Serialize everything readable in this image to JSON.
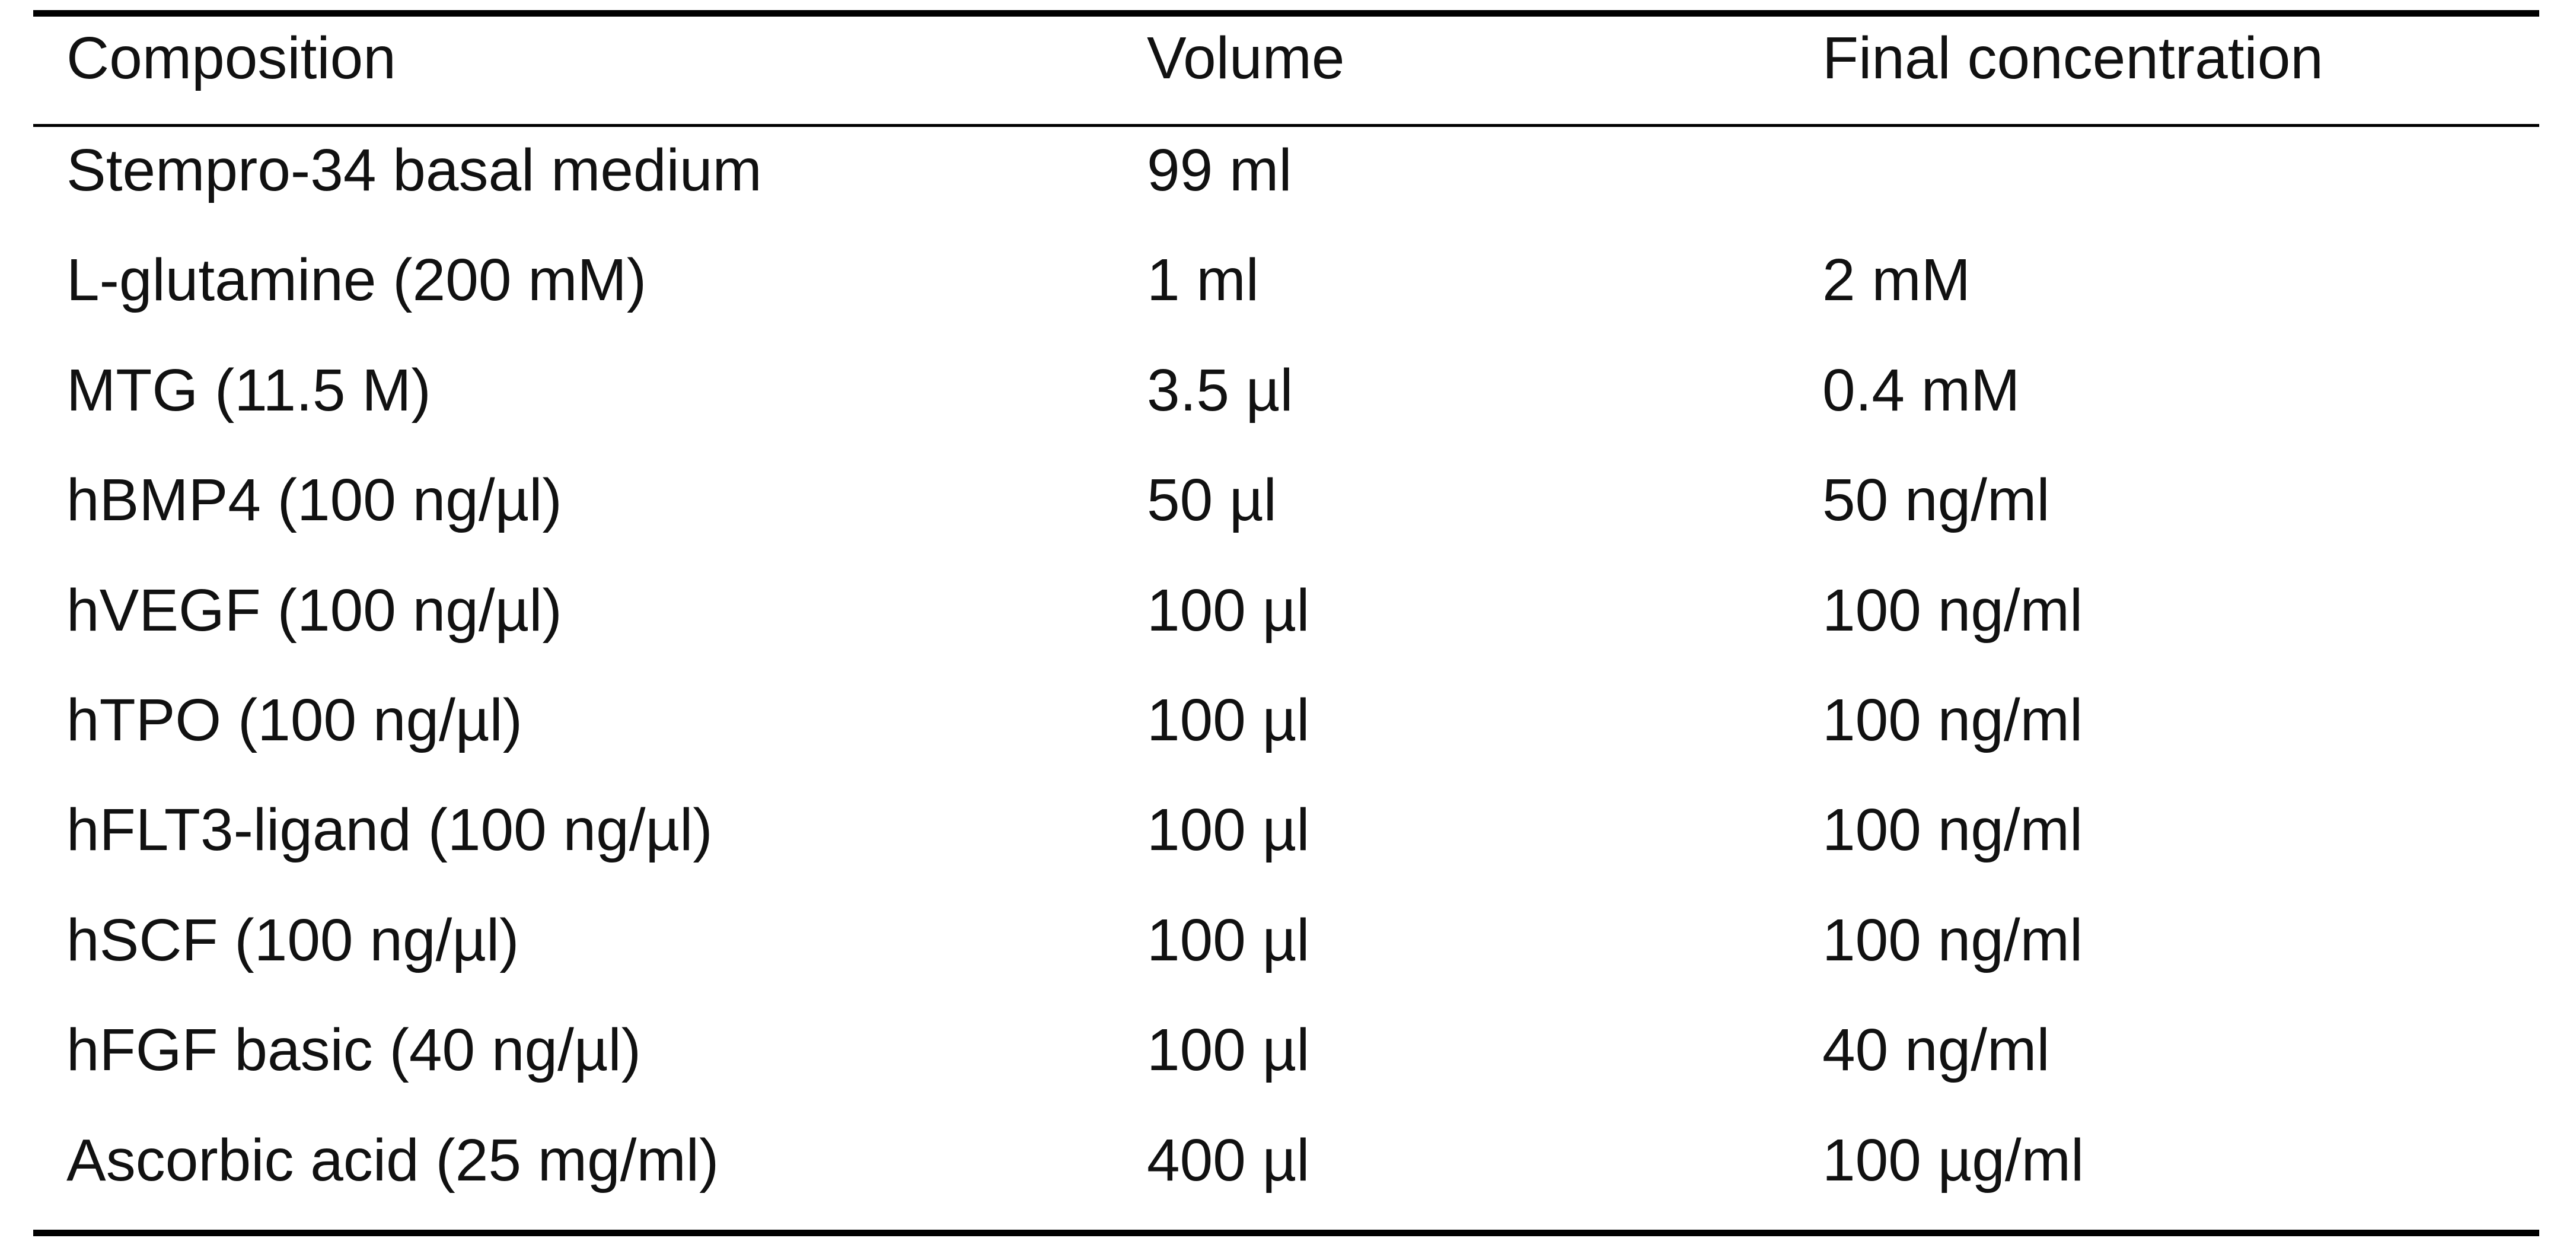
{
  "table": {
    "header": [
      "Composition",
      "Volume",
      "Final concentration"
    ],
    "rows": [
      [
        "Stempro-34 basal medium",
        "99 ml"
      ],
      [
        "L-glutamine (200 mM)",
        "1 ml",
        "2 mM"
      ],
      [
        "MTG (11.5 M)",
        "3.5 µl",
        "0.4 mM"
      ],
      [
        "hBMP4 (100 ng/µl)",
        "50 µl",
        "50 ng/ml"
      ],
      [
        "hVEGF (100 ng/µl)",
        "100 µl",
        "100 ng/ml"
      ],
      [
        "hTPO (100 ng/µl)",
        "100 µl",
        "100 ng/ml"
      ],
      [
        "hFLT3-ligand (100 ng/µl)",
        "100 µl",
        "100 ng/ml"
      ],
      [
        "hSCF (100 ng/µl)",
        "100 µl",
        "100 ng/ml"
      ],
      [
        "hFGF basic (40 ng/µl)",
        "100 µl",
        "40 ng/ml"
      ],
      [
        "Ascorbic acid (25 mg/ml)",
        "400 µl",
        "100 µg/ml"
      ]
    ]
  }
}
